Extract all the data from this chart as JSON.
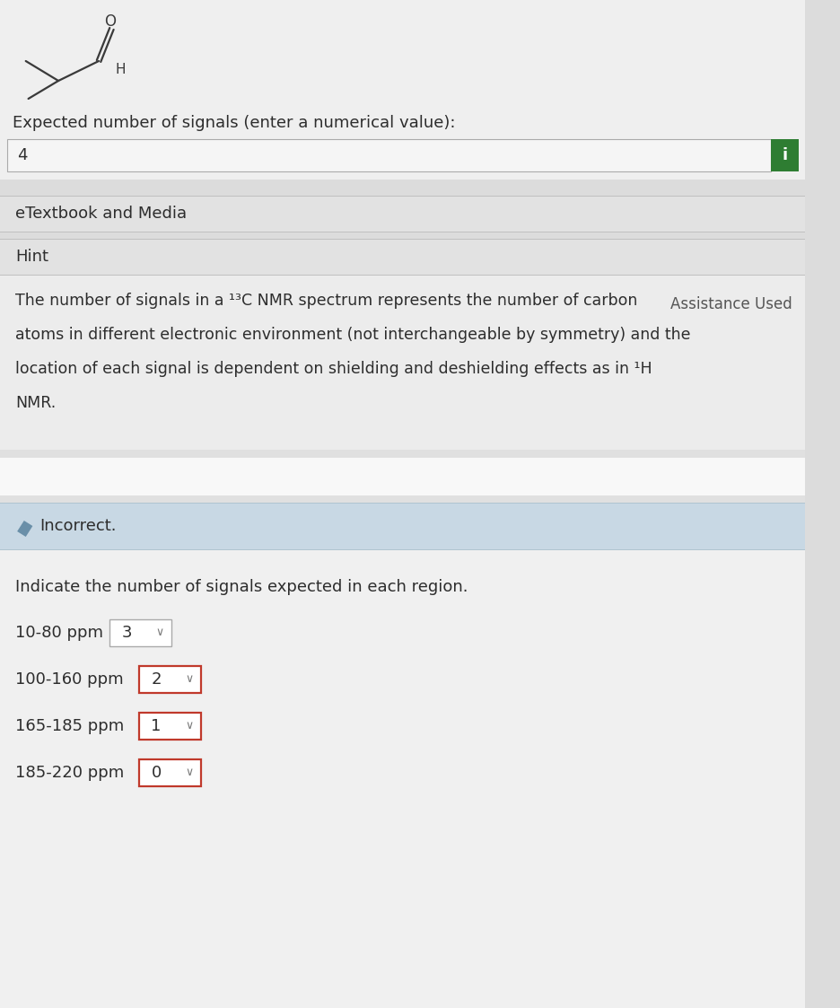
{
  "bg_color": "#dcdcdc",
  "top_section_bg": "#efefef",
  "panel_bg": "#e8e8e8",
  "etextbook_bg": "#e2e2e2",
  "hint_header_bg": "#e2e2e2",
  "hint_body_bg": "#ececec",
  "incorrect_bg": "#c8d8e4",
  "indicate_bg": "#f0f0f0",
  "input_bg": "#f5f5f5",
  "white": "#ffffff",
  "dark_text": "#2d2d2d",
  "medium_text": "#555555",
  "light_text": "#777777",
  "green_btn": "#2e7d32",
  "red_border": "#c0392b",
  "gray_border": "#aaaaaa",
  "blue_border": "#9ab0c0",
  "question_label": "Expected number of signals (enter a numerical value):",
  "answer_value": "4",
  "etextbook_label": "eTextbook and Media",
  "hint_label": "Hint",
  "assistance_label": "Assistance Used",
  "hint_line1": "The number of signals in a ¹³C NMR spectrum represents the number of carbon",
  "hint_line2": "atoms in different electronic environment (not interchangeable by symmetry) and the",
  "hint_line3": "location of each signal is dependent on shielding and deshielding effects as in ¹H",
  "hint_line4": "NMR.",
  "incorrect_text": "Incorrect.",
  "indicate_text": "Indicate the number of signals expected in each region.",
  "regions": [
    "10-80 ppm",
    "100-160 ppm",
    "165-185 ppm",
    "185-220 ppm"
  ],
  "region_values": [
    "3",
    "2",
    "1",
    "0"
  ],
  "region_correct": [
    true,
    false,
    false,
    false
  ]
}
